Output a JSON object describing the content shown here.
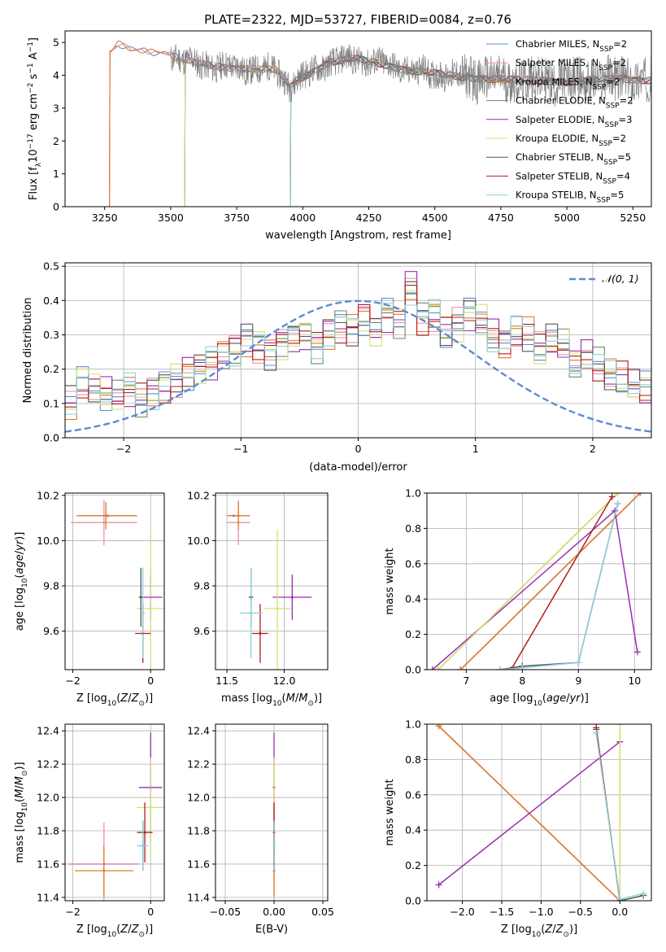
{
  "page_title": "PLATE=2322, MJD=53727, FIBERID=0084, z=0.76",
  "series": [
    {
      "name": "Chabrier MILES, N$_{SSP}$=2",
      "label_main": "Chabrier MILES, N",
      "label_sub": "SSP",
      "label_end": "=2",
      "color": "#5b8bd6"
    },
    {
      "name": "Salpeter MILES, N$_{SSP}$=2",
      "label_main": "Salpeter MILES, N",
      "label_sub": "SSP",
      "label_end": "=2",
      "color": "#ef8fa6"
    },
    {
      "name": "Kroupa MILES, N$_{SSP}$=2",
      "label_main": "Kroupa MILES, N",
      "label_sub": "SSP",
      "label_end": "=2",
      "color": "#e07b2a"
    },
    {
      "name": "Chabrier ELODIE, N$_{SSP}$=2",
      "label_main": "Chabrier ELODIE, N",
      "label_sub": "SSP",
      "label_end": "=2",
      "color": "#6b8f5e"
    },
    {
      "name": "Salpeter ELODIE, N$_{SSP}$=3",
      "label_main": "Salpeter ELODIE, N",
      "label_sub": "SSP",
      "label_end": "=3",
      "color": "#9a2eb0"
    },
    {
      "name": "Kroupa ELODIE, N$_{SSP}$=2",
      "label_main": "Kroupa ELODIE, N",
      "label_sub": "SSP",
      "label_end": "=2",
      "color": "#d8e070"
    },
    {
      "name": "Chabrier STELIB, N$_{SSP}$=5",
      "label_main": "Chabrier STELIB, N",
      "label_sub": "SSP",
      "label_end": "=5",
      "color": "#555555"
    },
    {
      "name": "Salpeter STELIB, N$_{SSP}$=4",
      "label_main": "Salpeter STELIB, N",
      "label_sub": "SSP",
      "label_end": "=4",
      "color": "#b41c1c"
    },
    {
      "name": "Kroupa STELIB, N$_{SSP}$=5",
      "label_main": "Kroupa STELIB, N",
      "label_sub": "SSP",
      "label_end": "=5",
      "color": "#8fd0dc"
    }
  ],
  "chart_data": [
    {
      "id": "spectrum",
      "type": "line",
      "xlabel": "wavelength [Angstrom, rest frame]",
      "ylabel": "Flux [f$_\\lambda$10$^{-17}$ erg cm$^{-2}$ s$^{-1}$ A$^{-1}$]",
      "ylabel_parts": [
        "Flux [f",
        "λ",
        "10",
        "−17",
        " erg cm",
        "−2",
        " s",
        "−1",
        " A",
        "−1",
        "]"
      ],
      "xlim": [
        3100,
        5320
      ],
      "ylim": [
        0,
        5.35
      ],
      "xticks": [
        3250,
        3500,
        3750,
        4000,
        4250,
        4500,
        4750,
        5000,
        5250
      ],
      "yticks": [
        0,
        1,
        2,
        3,
        4,
        5
      ],
      "grid": false,
      "legend_loc": "upper right",
      "observed_color": "#7f7f7f",
      "model_starts": {
        "MILES": 3270,
        "ELODIE": 3555,
        "STELIB": 3955
      },
      "observed_range": [
        3500,
        5320
      ],
      "continuum_x": [
        3270,
        3300,
        3350,
        3400,
        3450,
        3500,
        3600,
        3700,
        3800,
        3900,
        3950,
        4000,
        4100,
        4200,
        4300,
        4400,
        4500,
        4600,
        4700,
        4800,
        4900,
        5000,
        5100,
        5200,
        5320
      ],
      "continuum_y": [
        4.75,
        4.95,
        4.75,
        4.8,
        4.68,
        4.6,
        4.35,
        4.25,
        4.2,
        4.15,
        3.7,
        3.95,
        4.4,
        4.5,
        4.35,
        4.15,
        4.05,
        3.95,
        3.9,
        3.85,
        3.85,
        3.8,
        3.85,
        3.9,
        3.85
      ]
    },
    {
      "id": "residuals",
      "type": "area",
      "xlabel": "(data-model)/error",
      "ylabel": "Normed distribution",
      "xlim": [
        -2.5,
        2.5
      ],
      "ylim": [
        0,
        0.51
      ],
      "xticks": [
        -2,
        -1,
        0,
        1,
        2
      ],
      "yticks": [
        0.0,
        0.1,
        0.2,
        0.3,
        0.4,
        0.5
      ],
      "grid": true,
      "legend_loc": "upper right",
      "gaussian_label": "𝒩(0, 1)",
      "gaussian_color": "#5b8bd6",
      "bin_width": 0.1,
      "base_hist": [
        0.1,
        0.16,
        0.15,
        0.13,
        0.12,
        0.14,
        0.11,
        0.13,
        0.15,
        0.17,
        0.19,
        0.21,
        0.22,
        0.24,
        0.26,
        0.29,
        0.27,
        0.25,
        0.28,
        0.29,
        0.3,
        0.27,
        0.31,
        0.33,
        0.32,
        0.35,
        0.31,
        0.36,
        0.34,
        0.44,
        0.35,
        0.36,
        0.31,
        0.33,
        0.36,
        0.34,
        0.3,
        0.28,
        0.31,
        0.3,
        0.26,
        0.28,
        0.27,
        0.22,
        0.24,
        0.21,
        0.18,
        0.17,
        0.15,
        0.14,
        0.16,
        0.12,
        0.11,
        0.1,
        0.09,
        0.1,
        0.08,
        0.07,
        0.08,
        0.07,
        0.06,
        0.07,
        0.05,
        0.05,
        0.06,
        0.05,
        0.04,
        0.05,
        0.05,
        0.05
      ]
    },
    {
      "id": "age-vs-Z",
      "type": "scatter",
      "xlabel": "Z [log$_{10}$(Z/Z$_\\odot$)]",
      "ylabel": "age  [log$_{10}$(age/yr)]",
      "xlim": [
        -2.2,
        0.35
      ],
      "ylim": [
        9.43,
        10.21
      ],
      "xticks": [
        -2,
        0
      ],
      "yticks": [
        9.6,
        9.8,
        10.0,
        10.2
      ],
      "grid": true,
      "points": [
        {
          "s": 0,
          "x": -1.1,
          "y": 10.11,
          "xerr": 0.75,
          "yerr": 0.0
        },
        {
          "s": 1,
          "x": -1.2,
          "y": 10.08,
          "xerr": 0.85,
          "yerr": 0.1
        },
        {
          "s": 2,
          "x": -1.15,
          "y": 10.11,
          "xerr": 0.75,
          "yerr": 0.06
        },
        {
          "s": 4,
          "x": 0.0,
          "y": 9.75,
          "xerr": 0.3,
          "yerr": 0.1
        },
        {
          "s": 5,
          "x": 0.0,
          "y": 9.7,
          "xerr": 0.35,
          "yerr": 0.35
        },
        {
          "s": 6,
          "x": -0.25,
          "y": 9.75,
          "xerr": 0.05,
          "yerr": 0.13
        },
        {
          "s": 7,
          "x": -0.2,
          "y": 9.59,
          "xerr": 0.2,
          "yerr": 0.13
        },
        {
          "s": 8,
          "x": -0.2,
          "y": 9.68,
          "xerr": 0.05,
          "yerr": 0.2
        }
      ]
    },
    {
      "id": "age-vs-mass",
      "type": "scatter",
      "xlabel": "mass [log$_{10}$(M/M$_\\odot$)]",
      "ylabel": "",
      "xlim": [
        11.4,
        12.38
      ],
      "ylim": [
        9.43,
        10.21
      ],
      "xticks": [
        11.5,
        12.0
      ],
      "yticks": [
        9.6,
        9.8,
        10.0,
        10.2
      ],
      "grid": true,
      "points": [
        {
          "s": 0,
          "x": 11.56,
          "y": 10.11,
          "xerr": 0.05,
          "yerr": 0.0
        },
        {
          "s": 1,
          "x": 11.6,
          "y": 10.08,
          "xerr": 0.1,
          "yerr": 0.1
        },
        {
          "s": 2,
          "x": 11.6,
          "y": 10.11,
          "xerr": 0.1,
          "yerr": 0.06
        },
        {
          "s": 4,
          "x": 12.07,
          "y": 9.75,
          "xerr": 0.17,
          "yerr": 0.1
        },
        {
          "s": 5,
          "x": 11.94,
          "y": 9.7,
          "xerr": 0.12,
          "yerr": 0.35
        },
        {
          "s": 6,
          "x": 11.71,
          "y": 9.75,
          "xerr": 0.02,
          "yerr": 0.13
        },
        {
          "s": 7,
          "x": 11.79,
          "y": 9.59,
          "xerr": 0.07,
          "yerr": 0.13
        },
        {
          "s": 8,
          "x": 11.71,
          "y": 9.68,
          "xerr": 0.1,
          "yerr": 0.2
        }
      ]
    },
    {
      "id": "weight-vs-age",
      "type": "line",
      "xlabel": "age  [log$_{10}$(age/yr)]",
      "ylabel": "mass weight",
      "xlim": [
        6.3,
        10.3
      ],
      "ylim": [
        0,
        1.0
      ],
      "xticks": [
        7,
        8,
        9,
        10
      ],
      "yticks": [
        0.0,
        0.2,
        0.4,
        0.6,
        0.8,
        1.0
      ],
      "grid": true,
      "lines": [
        {
          "s": 0,
          "x": [
            6.9,
            10.1
          ],
          "y": [
            0.0,
            1.0
          ]
        },
        {
          "s": 1,
          "x": [
            6.9,
            10.1
          ],
          "y": [
            0.0,
            1.0
          ]
        },
        {
          "s": 2,
          "x": [
            6.9,
            10.1
          ],
          "y": [
            0.0,
            1.0
          ]
        },
        {
          "s": 3,
          "x": [
            6.5,
            9.7
          ],
          "y": [
            0.0,
            1.0
          ]
        },
        {
          "s": 4,
          "x": [
            6.4,
            9.65,
            10.05
          ],
          "y": [
            0.0,
            0.9,
            0.1
          ]
        },
        {
          "s": 5,
          "x": [
            6.5,
            9.7
          ],
          "y": [
            0.0,
            1.0
          ]
        },
        {
          "s": 6,
          "x": [
            7.6,
            8.0,
            9.0,
            9.7
          ],
          "y": [
            0.0,
            0.02,
            0.04,
            0.94
          ]
        },
        {
          "s": 7,
          "x": [
            7.8,
            9.6
          ],
          "y": [
            0.0,
            0.98
          ]
        },
        {
          "s": 8,
          "x": [
            7.6,
            8.0,
            9.0,
            9.7
          ],
          "y": [
            0.0,
            0.01,
            0.04,
            0.94
          ]
        }
      ]
    },
    {
      "id": "mass-vs-Z",
      "type": "scatter",
      "xlabel": "Z [log$_{10}$(Z/Z$_\\odot$)]",
      "ylabel": "mass [log$_{10}$(M/M$_\\odot$)]",
      "xlim": [
        -2.2,
        0.35
      ],
      "ylim": [
        11.38,
        12.44
      ],
      "xticks": [
        -2,
        0
      ],
      "yticks": [
        11.4,
        11.6,
        11.8,
        12.0,
        12.2,
        12.4
      ],
      "grid": true,
      "points": [
        {
          "s": 0,
          "x": -1.2,
          "y": 11.6,
          "xerr": 0.9,
          "yerr": 0.02
        },
        {
          "s": 1,
          "x": -1.2,
          "y": 11.6,
          "xerr": 0.9,
          "yerr": 0.25
        },
        {
          "s": 2,
          "x": -1.2,
          "y": 11.56,
          "xerr": 0.75,
          "yerr": 0.15
        },
        {
          "s": 4,
          "x": 0.0,
          "y": 12.06,
          "xerr": 0.3,
          "yerr": 0.33
        },
        {
          "s": 5,
          "x": 0.0,
          "y": 11.94,
          "xerr": 0.35,
          "yerr": 0.3
        },
        {
          "s": 6,
          "x": -0.2,
          "y": 11.71,
          "xerr": 0.05,
          "yerr": 0.15
        },
        {
          "s": 7,
          "x": -0.15,
          "y": 11.79,
          "xerr": 0.2,
          "yerr": 0.18
        },
        {
          "s": 8,
          "x": -0.2,
          "y": 11.71,
          "xerr": 0.15,
          "yerr": 0.15
        }
      ]
    },
    {
      "id": "mass-vs-EBV",
      "type": "scatter",
      "xlabel": "E(B-V)",
      "ylabel": "",
      "xlim": [
        -0.06,
        0.055
      ],
      "ylim": [
        11.38,
        12.44
      ],
      "xticks": [
        -0.05,
        0.0,
        0.05
      ],
      "xtick_labels": [
        "−0.05",
        "0.00",
        "0.05"
      ],
      "yticks": [
        11.4,
        11.6,
        11.8,
        12.0,
        12.2,
        12.4
      ],
      "grid": true,
      "points": [
        {
          "s": 0,
          "x": 0.0,
          "y": 11.6,
          "xerr": 0.0,
          "yerr": 0.02
        },
        {
          "s": 1,
          "x": 0.0,
          "y": 11.6,
          "xerr": 0.0,
          "yerr": 0.25
        },
        {
          "s": 2,
          "x": 0.0,
          "y": 11.56,
          "xerr": 0.0,
          "yerr": 0.15
        },
        {
          "s": 4,
          "x": 0.0,
          "y": 12.06,
          "xerr": 0.0,
          "yerr": 0.33
        },
        {
          "s": 5,
          "x": 0.0,
          "y": 11.94,
          "xerr": 0.0,
          "yerr": 0.3
        },
        {
          "s": 6,
          "x": 0.0,
          "y": 11.71,
          "xerr": 0.0,
          "yerr": 0.15
        },
        {
          "s": 7,
          "x": 0.0,
          "y": 11.79,
          "xerr": 0.0,
          "yerr": 0.18
        },
        {
          "s": 8,
          "x": 0.0,
          "y": 11.71,
          "xerr": 0.0,
          "yerr": 0.15
        }
      ]
    },
    {
      "id": "weight-vs-Z",
      "type": "line",
      "xlabel": "Z [log$_{10}$(Z/Z$_\\odot$)]",
      "ylabel": "mass weight",
      "xlim": [
        -2.45,
        0.4
      ],
      "ylim": [
        0,
        1.0
      ],
      "xticks": [
        -2.0,
        -1.5,
        -1.0,
        -0.5,
        0.0
      ],
      "xtick_labels": [
        "−2.0",
        "−1.5",
        "−1.0",
        "−0.5",
        "0.0"
      ],
      "yticks": [
        0.0,
        0.2,
        0.4,
        0.6,
        0.8,
        1.0
      ],
      "grid": true,
      "lines": [
        {
          "s": 0,
          "x": [
            -2.3,
            0.0
          ],
          "y": [
            0.99,
            0.0
          ]
        },
        {
          "s": 1,
          "x": [
            -2.3,
            0.0
          ],
          "y": [
            0.99,
            0.0
          ]
        },
        {
          "s": 2,
          "x": [
            -2.3,
            0.0
          ],
          "y": [
            0.99,
            0.0
          ]
        },
        {
          "s": 3,
          "x": [
            0.0,
            0.0
          ],
          "y": [
            0.0,
            1.0
          ]
        },
        {
          "s": 4,
          "x": [
            -2.3,
            0.0
          ],
          "y": [
            0.09,
            0.9
          ]
        },
        {
          "s": 5,
          "x": [
            0.0,
            0.0
          ],
          "y": [
            0.0,
            1.0
          ]
        },
        {
          "s": 6,
          "x": [
            -0.3,
            0.0,
            0.3
          ],
          "y": [
            0.97,
            0.0,
            0.03
          ]
        },
        {
          "s": 7,
          "x": [
            -0.3,
            0.0
          ],
          "y": [
            0.98,
            0.0
          ]
        },
        {
          "s": 8,
          "x": [
            -0.3,
            0.0,
            0.3
          ],
          "y": [
            0.95,
            0.01,
            0.04
          ]
        }
      ]
    }
  ]
}
